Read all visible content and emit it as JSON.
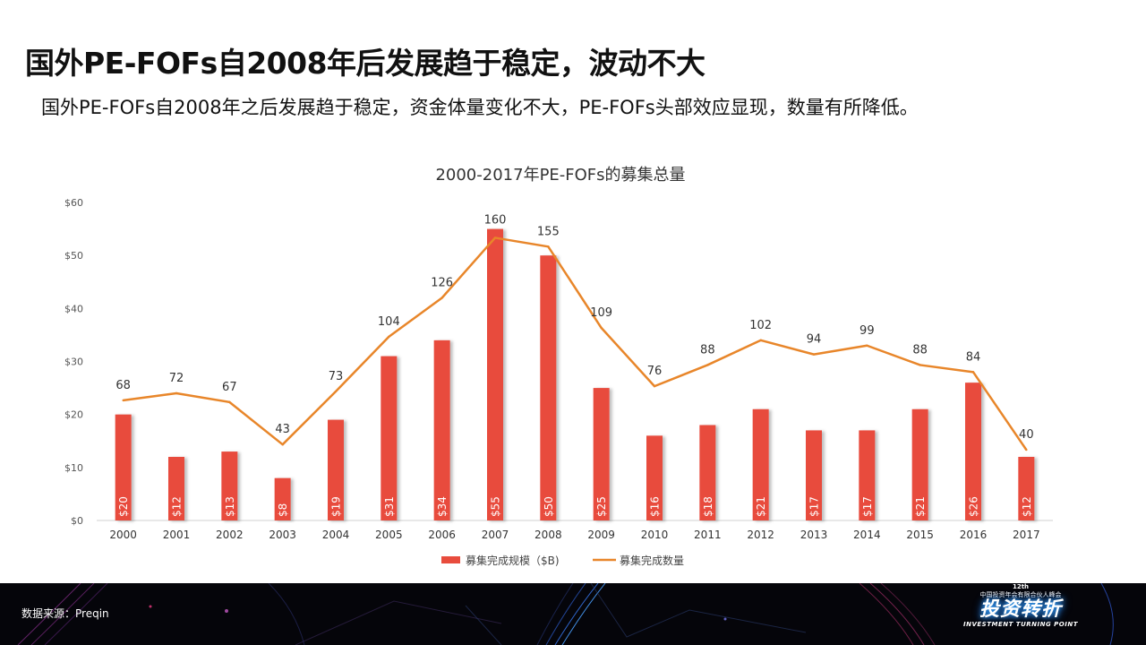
{
  "header": {
    "title": "国外PE-FOFs自2008年后发展趋于稳定，波动不大",
    "subtitle": "国外PE-FOFs自2008年之后发展趋于稳定，资金体量变化不大，PE-FOFs头部效应显现，数量有所降低。"
  },
  "chart_data": {
    "type": "bar",
    "title": "2000-2017年PE-FOFs的募集总量",
    "categories": [
      "2000",
      "2001",
      "2002",
      "2003",
      "2004",
      "2005",
      "2006",
      "2007",
      "2008",
      "2009",
      "2010",
      "2011",
      "2012",
      "2013",
      "2014",
      "2015",
      "2016",
      "2017"
    ],
    "series": [
      {
        "name": "募集完成规模（$B)",
        "type": "bar",
        "axis": "primary",
        "color": "#e84c3d",
        "values": [
          20,
          12,
          13,
          8,
          19,
          31,
          34,
          55,
          50,
          25,
          16,
          18,
          21,
          17,
          17,
          21,
          26,
          12
        ],
        "labels": [
          "$20",
          "$12",
          "$13",
          "$8",
          "$19",
          "$31",
          "$34",
          "$55",
          "$50",
          "$25",
          "$16",
          "$18",
          "$21",
          "$17",
          "$17",
          "$21",
          "$26",
          "$12"
        ]
      },
      {
        "name": "募集完成数量",
        "type": "line",
        "axis": "secondary",
        "color": "#e8862a",
        "values": [
          68,
          72,
          67,
          43,
          73,
          104,
          126,
          160,
          155,
          109,
          76,
          88,
          102,
          94,
          99,
          88,
          84,
          40
        ]
      }
    ],
    "yaxis": {
      "ylim": [
        0,
        60
      ],
      "ticks": [
        0,
        10,
        20,
        30,
        40,
        50,
        60
      ],
      "tick_labels": [
        "$0",
        "$10",
        "$20",
        "$30",
        "$40",
        "$50",
        "$60"
      ]
    },
    "y2axis": {
      "ylim": [
        0,
        180
      ],
      "visible": false
    },
    "grid": false,
    "legend": "bottom"
  },
  "footer": {
    "source": "数据来源：Preqin",
    "logo": {
      "edition": "12th",
      "org": "中国投资年会有限合伙人峰会",
      "main": "投资转折",
      "en": "INVESTMENT TURNING POINT"
    }
  }
}
